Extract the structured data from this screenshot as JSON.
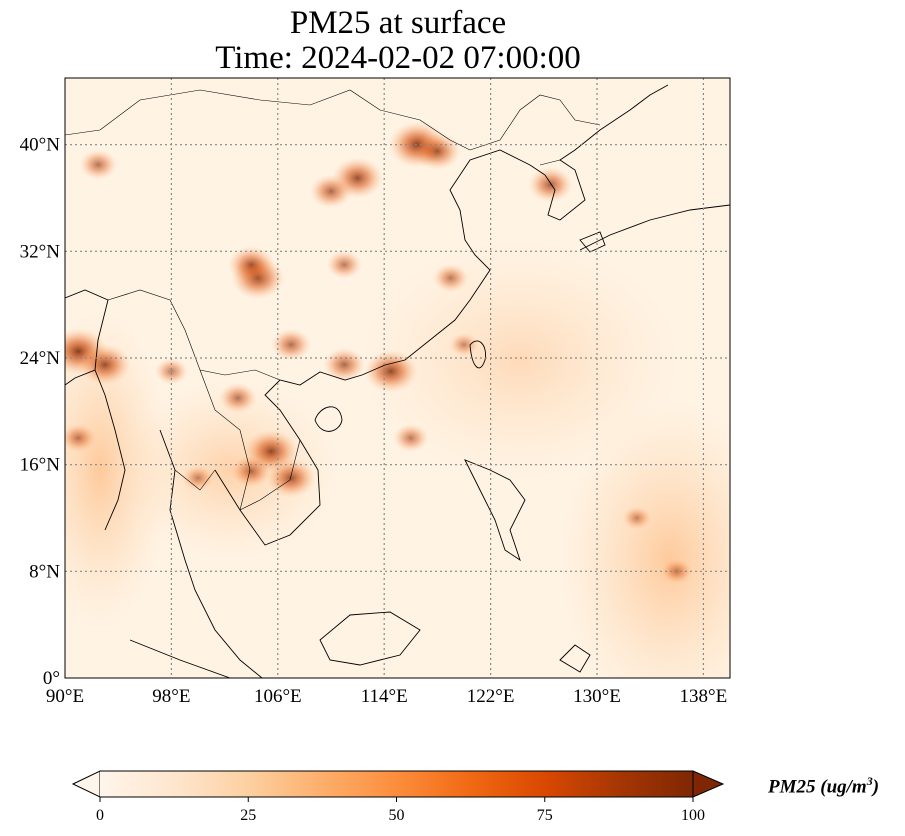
{
  "title": {
    "line1": "PM25 at surface",
    "line2": "Time: 2024-02-02 07:00:00"
  },
  "map": {
    "lon_range": [
      90,
      140
    ],
    "lat_range": [
      0,
      45
    ],
    "x_ticks": [
      "90°E",
      "98°E",
      "106°E",
      "114°E",
      "122°E",
      "130°E",
      "138°E"
    ],
    "y_ticks": [
      "0°",
      "8°N",
      "16°N",
      "24°N",
      "32°N",
      "40°N"
    ],
    "grid_lons": [
      98,
      106,
      114,
      122,
      130,
      138
    ],
    "grid_lats": [
      8,
      16,
      24,
      32,
      40
    ]
  },
  "colorbar": {
    "label_main": "PM25 (ug/m",
    "label_sup": "3",
    "label_end": ")",
    "ticks": [
      "0",
      "25",
      "50",
      "75",
      "100"
    ],
    "range": [
      0,
      100
    ],
    "colormap": [
      "#fff5eb",
      "#fee6ce",
      "#fdd0a2",
      "#fdae6b",
      "#fd8d3c",
      "#f16913",
      "#d94801",
      "#a63603",
      "#7f2704"
    ],
    "extend": "both"
  },
  "hotspots": [
    {
      "lon": 91,
      "lat": 24.5,
      "value": 95
    },
    {
      "lon": 93,
      "lat": 23.5,
      "value": 80
    },
    {
      "lon": 105.5,
      "lat": 17,
      "value": 85
    },
    {
      "lon": 107,
      "lat": 15,
      "value": 75
    },
    {
      "lon": 104,
      "lat": 15.5,
      "value": 55
    },
    {
      "lon": 116.5,
      "lat": 40,
      "value": 95
    },
    {
      "lon": 118,
      "lat": 39.5,
      "value": 70
    },
    {
      "lon": 112,
      "lat": 37.5,
      "value": 80
    },
    {
      "lon": 110,
      "lat": 36.5,
      "value": 60
    },
    {
      "lon": 104.5,
      "lat": 30,
      "value": 85
    },
    {
      "lon": 104,
      "lat": 31,
      "value": 70
    },
    {
      "lon": 114.5,
      "lat": 23,
      "value": 85
    },
    {
      "lon": 111,
      "lat": 23.5,
      "value": 60
    },
    {
      "lon": 107,
      "lat": 25,
      "value": 55
    },
    {
      "lon": 116,
      "lat": 18,
      "value": 45
    },
    {
      "lon": 92.5,
      "lat": 38.5,
      "value": 50
    },
    {
      "lon": 111,
      "lat": 31,
      "value": 45
    },
    {
      "lon": 119,
      "lat": 30,
      "value": 45
    },
    {
      "lon": 126.5,
      "lat": 37,
      "value": 65
    },
    {
      "lon": 120,
      "lat": 25,
      "value": 30
    },
    {
      "lon": 133,
      "lat": 12,
      "value": 30
    },
    {
      "lon": 136,
      "lat": 8,
      "value": 35
    },
    {
      "lon": 91,
      "lat": 18,
      "value": 45
    },
    {
      "lon": 98,
      "lat": 23,
      "value": 40
    },
    {
      "lon": 103,
      "lat": 21,
      "value": 50
    },
    {
      "lon": 100,
      "lat": 15,
      "value": 35
    }
  ]
}
